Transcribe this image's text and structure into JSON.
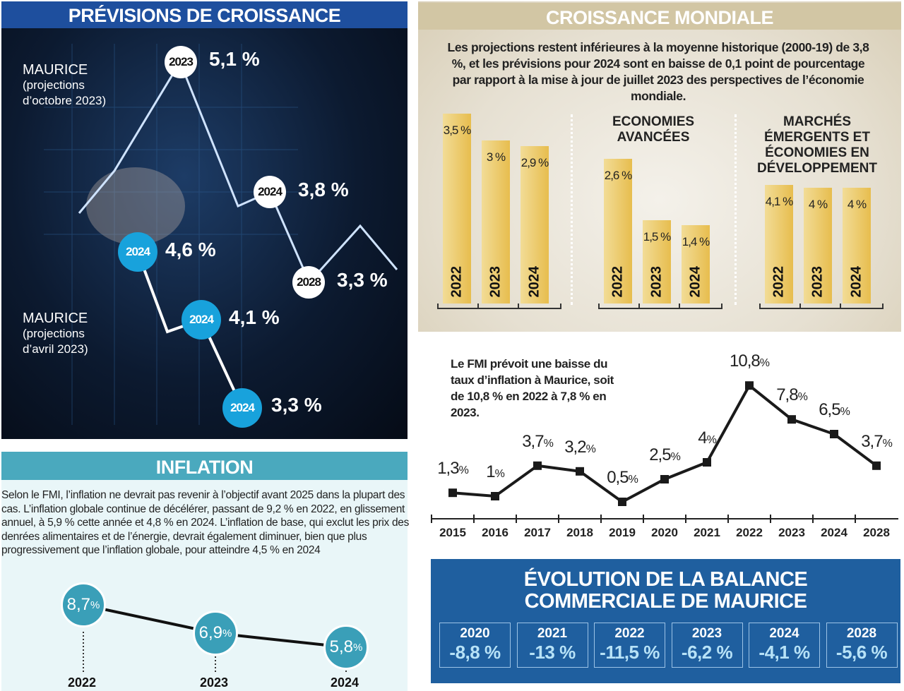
{
  "left": {
    "title": "PRÉVISIONS DE CROISSANCE",
    "oct": {
      "label": "MAURICE",
      "sub1": "(projections",
      "sub2": "d’octobre 2023)",
      "points": [
        {
          "year": "2023",
          "value": "5,1 %"
        },
        {
          "year": "2024",
          "value": "3,8 %"
        },
        {
          "year": "2028",
          "value": "3,3 %"
        }
      ]
    },
    "apr": {
      "label": "MAURICE",
      "sub1": "(projections",
      "sub2": "d’avril 2023)",
      "points": [
        {
          "year": "2024",
          "value": "4,6 %"
        },
        {
          "year": "2024",
          "value": "4,1 %"
        },
        {
          "year": "2024",
          "value": "3,3 %"
        }
      ]
    }
  },
  "inflation": {
    "title": "INFLATION",
    "text": "Selon le FMI, l’inflation ne devrait pas revenir à l’objectif avant 2025 dans la plupart des cas. L’inflation globale continue de décélérer, passant de 9,2 % en 2022, en glissement annuel, à 5,9 % cette année et 4,8 % en 2024. L’inflation de base, qui exclut les prix des denrées alimentaires et de l’énergie, devrait également diminuer, bien que plus progressivement que l’inflation globale, pour atteindre 4,5 % en 2024",
    "points": [
      {
        "year": "2022",
        "num": "8,7",
        "unit": "%"
      },
      {
        "year": "2023",
        "num": "6,9",
        "unit": "%"
      },
      {
        "year": "2024",
        "num": "5,8",
        "unit": "%"
      }
    ]
  },
  "world": {
    "title": "CROISSANCE MONDIALE",
    "text": "Les projections restent inférieures à la moyenne historique (2000-19) de 3,8 %, et les prévisions pour 2024 sont en baisse de 0,1 point de pourcentage par rapport à la mise à jour de juillet 2023 des perspectives de l’économie mondiale."
  },
  "chart_data": [
    {
      "type": "bar",
      "title": "",
      "group": "",
      "categories": [
        "2022",
        "2023",
        "2024"
      ],
      "values": [
        3.5,
        3.0,
        2.9
      ],
      "labels": [
        "3,5 %",
        "3 %",
        "2,9 %"
      ]
    },
    {
      "type": "bar",
      "title": "ECONOMIES AVANCÉES",
      "categories": [
        "2022",
        "2023",
        "2024"
      ],
      "values": [
        2.6,
        1.5,
        1.4
      ],
      "labels": [
        "2,6 %",
        "1,5 %",
        "1,4 %"
      ]
    },
    {
      "type": "bar",
      "title": "MARCHÉS ÉMERGENTS ET ÉCONOMIES EN DÉVELOPPEMENT",
      "categories": [
        "2022",
        "2023",
        "2024"
      ],
      "values": [
        4.1,
        4.0,
        4.0
      ],
      "labels": [
        "4,1 %",
        "4 %",
        "4 %"
      ]
    },
    {
      "type": "line",
      "title": "Le FMI prévoit une baisse du taux d’inflation à Maurice, soit de 10,8 % en 2022 à 7,8 % en 2023.",
      "categories": [
        "2015",
        "2016",
        "2017",
        "2018",
        "2019",
        "2020",
        "2021",
        "2022",
        "2023",
        "2024",
        "2028"
      ],
      "values": [
        1.3,
        1,
        3.7,
        3.2,
        0.5,
        2.5,
        4,
        10.8,
        7.8,
        6.5,
        3.7
      ],
      "labels": [
        "1,3",
        "1",
        "3,7",
        "3,2",
        "0,5",
        "2,5",
        "4",
        "10,8",
        "7,8",
        "6,5",
        "3,7"
      ],
      "unit": "%"
    }
  ],
  "balance": {
    "title1": "ÉVOLUTION DE LA BALANCE",
    "title2": "COMMERCIALE DE MAURICE",
    "items": [
      {
        "year": "2020",
        "value": "-8,8 %"
      },
      {
        "year": "2021",
        "value": "-13 %"
      },
      {
        "year": "2022",
        "value": "-11,5 %"
      },
      {
        "year": "2023",
        "value": "-6,2 %"
      },
      {
        "year": "2024",
        "value": "-4,1 %"
      },
      {
        "year": "2028",
        "value": "-5,6 %"
      }
    ]
  }
}
